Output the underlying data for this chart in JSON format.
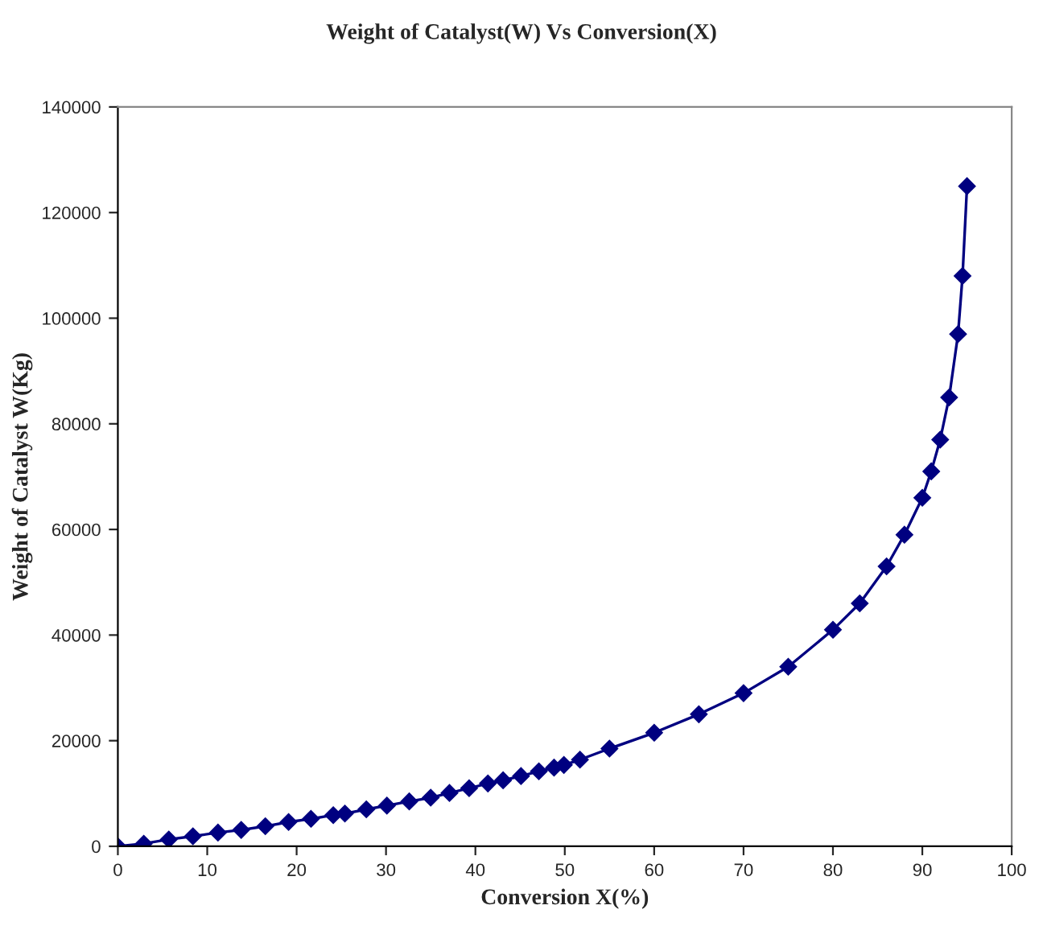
{
  "chart_data": {
    "type": "line",
    "title": "Weight of Catalyst(W) Vs Conversion(X)",
    "xlabel": "Conversion X(%)",
    "ylabel": "Weight of Catalyst W(Kg)",
    "x": [
      0,
      2.9,
      5.7,
      8.4,
      11.2,
      13.8,
      16.5,
      19.1,
      21.6,
      24.1,
      25.4,
      27.8,
      30.1,
      32.6,
      35.0,
      37.1,
      39.3,
      41.4,
      43.1,
      45.1,
      47.1,
      48.8,
      49.9,
      51.7,
      55,
      60,
      65,
      70,
      75,
      80,
      83,
      86,
      88,
      90,
      91,
      92,
      93,
      94,
      94.5,
      95
    ],
    "series": [
      {
        "color": "#000080",
        "values": [
          0,
          500,
          1300,
          1900,
          2600,
          3100,
          3800,
          4600,
          5200,
          5900,
          6200,
          7000,
          7700,
          8500,
          9200,
          10100,
          11000,
          11900,
          12500,
          13300,
          14200,
          14900,
          15400,
          16400,
          18500,
          21500,
          25000,
          29000,
          34000,
          41000,
          46000,
          53000,
          59000,
          66000,
          71000,
          77000,
          85000,
          97000,
          108000,
          125000
        ]
      }
    ],
    "xlim": [
      0,
      100
    ],
    "xticks": [
      0,
      10,
      20,
      30,
      40,
      50,
      60,
      70,
      80,
      90,
      100
    ],
    "ylim": [
      0,
      140000
    ],
    "yticks": [
      0,
      20000,
      40000,
      60000,
      80000,
      100000,
      120000,
      140000
    ],
    "marker": "diamond",
    "line_style": "solid",
    "grid": false,
    "legend": false
  }
}
